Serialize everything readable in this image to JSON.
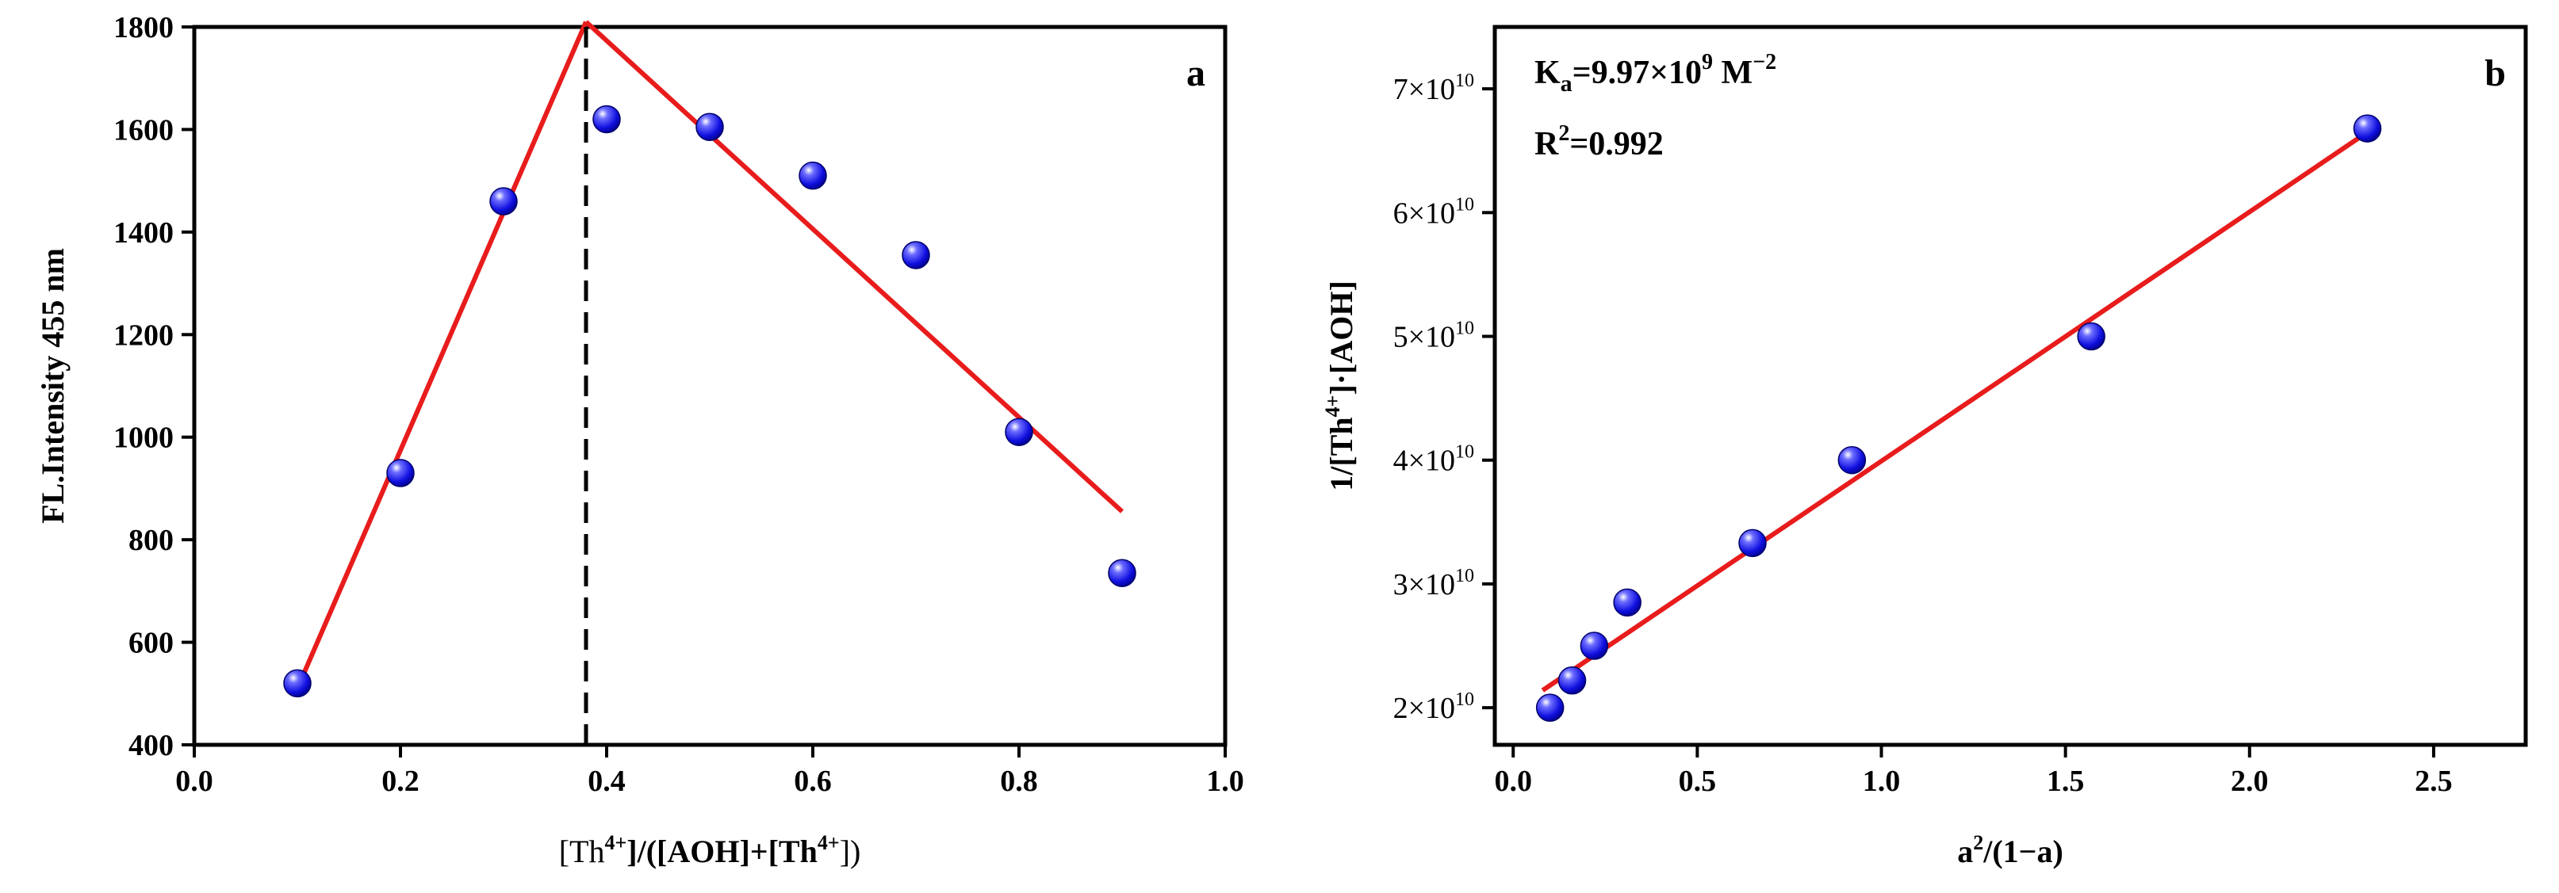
{
  "chart_data": [
    {
      "panel": "a",
      "type": "scatter",
      "title": "",
      "xlabel": "[Th4+]/([AOH]+[Th4+])",
      "xlabel_parts": {
        "p1": "[Th",
        "sup1": "4+",
        "p2": "]/([AOH]+[Th",
        "sup2": "4+",
        "p3": "])"
      },
      "ylabel": "FL.Intensity 455 nm",
      "xlim": [
        0.0,
        1.0
      ],
      "ylim": [
        400,
        1800
      ],
      "xticks": [
        0.0,
        0.2,
        0.4,
        0.6,
        0.8,
        1.0
      ],
      "xtick_labels": [
        "0.0",
        "0.2",
        "0.4",
        "0.6",
        "0.8",
        "1.0"
      ],
      "yticks": [
        400,
        600,
        800,
        1000,
        1200,
        1400,
        1600,
        1800
      ],
      "ytick_labels": [
        "400",
        "600",
        "800",
        "1000",
        "1200",
        "1400",
        "1600",
        "1800"
      ],
      "points": {
        "x": [
          0.1,
          0.2,
          0.3,
          0.4,
          0.5,
          0.6,
          0.7,
          0.8,
          0.9
        ],
        "y": [
          520,
          930,
          1460,
          1620,
          1605,
          1510,
          1355,
          1010,
          735
        ]
      },
      "fit_lines": [
        {
          "x": [
            0.1,
            0.38
          ],
          "y": [
            510,
            1810
          ]
        },
        {
          "x": [
            0.38,
            0.9
          ],
          "y": [
            1810,
            855
          ]
        }
      ],
      "vline_x": 0.38,
      "grid": false,
      "point_color": "#1e1ef0",
      "line_color": "#e81c1c"
    },
    {
      "panel": "b",
      "type": "scatter",
      "title": "",
      "xlabel": "a2/(1−a)",
      "xlabel_parts": {
        "p1": "a",
        "sup1": "2",
        "p2": "/(1−a)"
      },
      "ylabel": "1/[Th4+]·[AOH]",
      "ylabel_parts": {
        "p1": "1/[Th",
        "sup1": "4+",
        "p2": "]·[AOH]"
      },
      "xlim": [
        -0.05,
        2.75
      ],
      "ylim": [
        17000000000.0,
        75000000000.0
      ],
      "xticks": [
        0.0,
        0.5,
        1.0,
        1.5,
        2.0,
        2.5
      ],
      "xtick_labels": [
        "0.0",
        "0.5",
        "1.0",
        "1.5",
        "2.0",
        "2.5"
      ],
      "yticks": [
        20000000000.0,
        30000000000.0,
        40000000000.0,
        50000000000.0,
        60000000000.0,
        70000000000.0
      ],
      "ytick_labels": [
        {
          "mant": "2×10",
          "exp": "10"
        },
        {
          "mant": "3×10",
          "exp": "10"
        },
        {
          "mant": "4×10",
          "exp": "10"
        },
        {
          "mant": "5×10",
          "exp": "10"
        },
        {
          "mant": "6×10",
          "exp": "10"
        },
        {
          "mant": "7×10",
          "exp": "10"
        }
      ],
      "points": {
        "x": [
          0.1,
          0.16,
          0.22,
          0.31,
          0.65,
          0.92,
          1.57,
          2.32
        ],
        "y": [
          20000000000.0,
          22200000000.0,
          25000000000.0,
          28500000000.0,
          33300000000.0,
          40000000000.0,
          50000000000.0,
          66800000000.0
        ]
      },
      "fit_lines": [
        {
          "x": [
            0.08,
            2.32
          ],
          "y": [
            21400000000.0,
            66500000000.0
          ]
        }
      ],
      "annotations": {
        "ka": {
          "p1": "K",
          "sub": "a",
          "p2": "=9.97×10",
          "sup": "9",
          "p3": " M",
          "sup2": "−2"
        },
        "r2": {
          "p1": "R",
          "sup": "2",
          "p2": "=0.992"
        }
      },
      "grid": false,
      "point_color": "#1e1ef0",
      "line_color": "#e81c1c"
    }
  ]
}
